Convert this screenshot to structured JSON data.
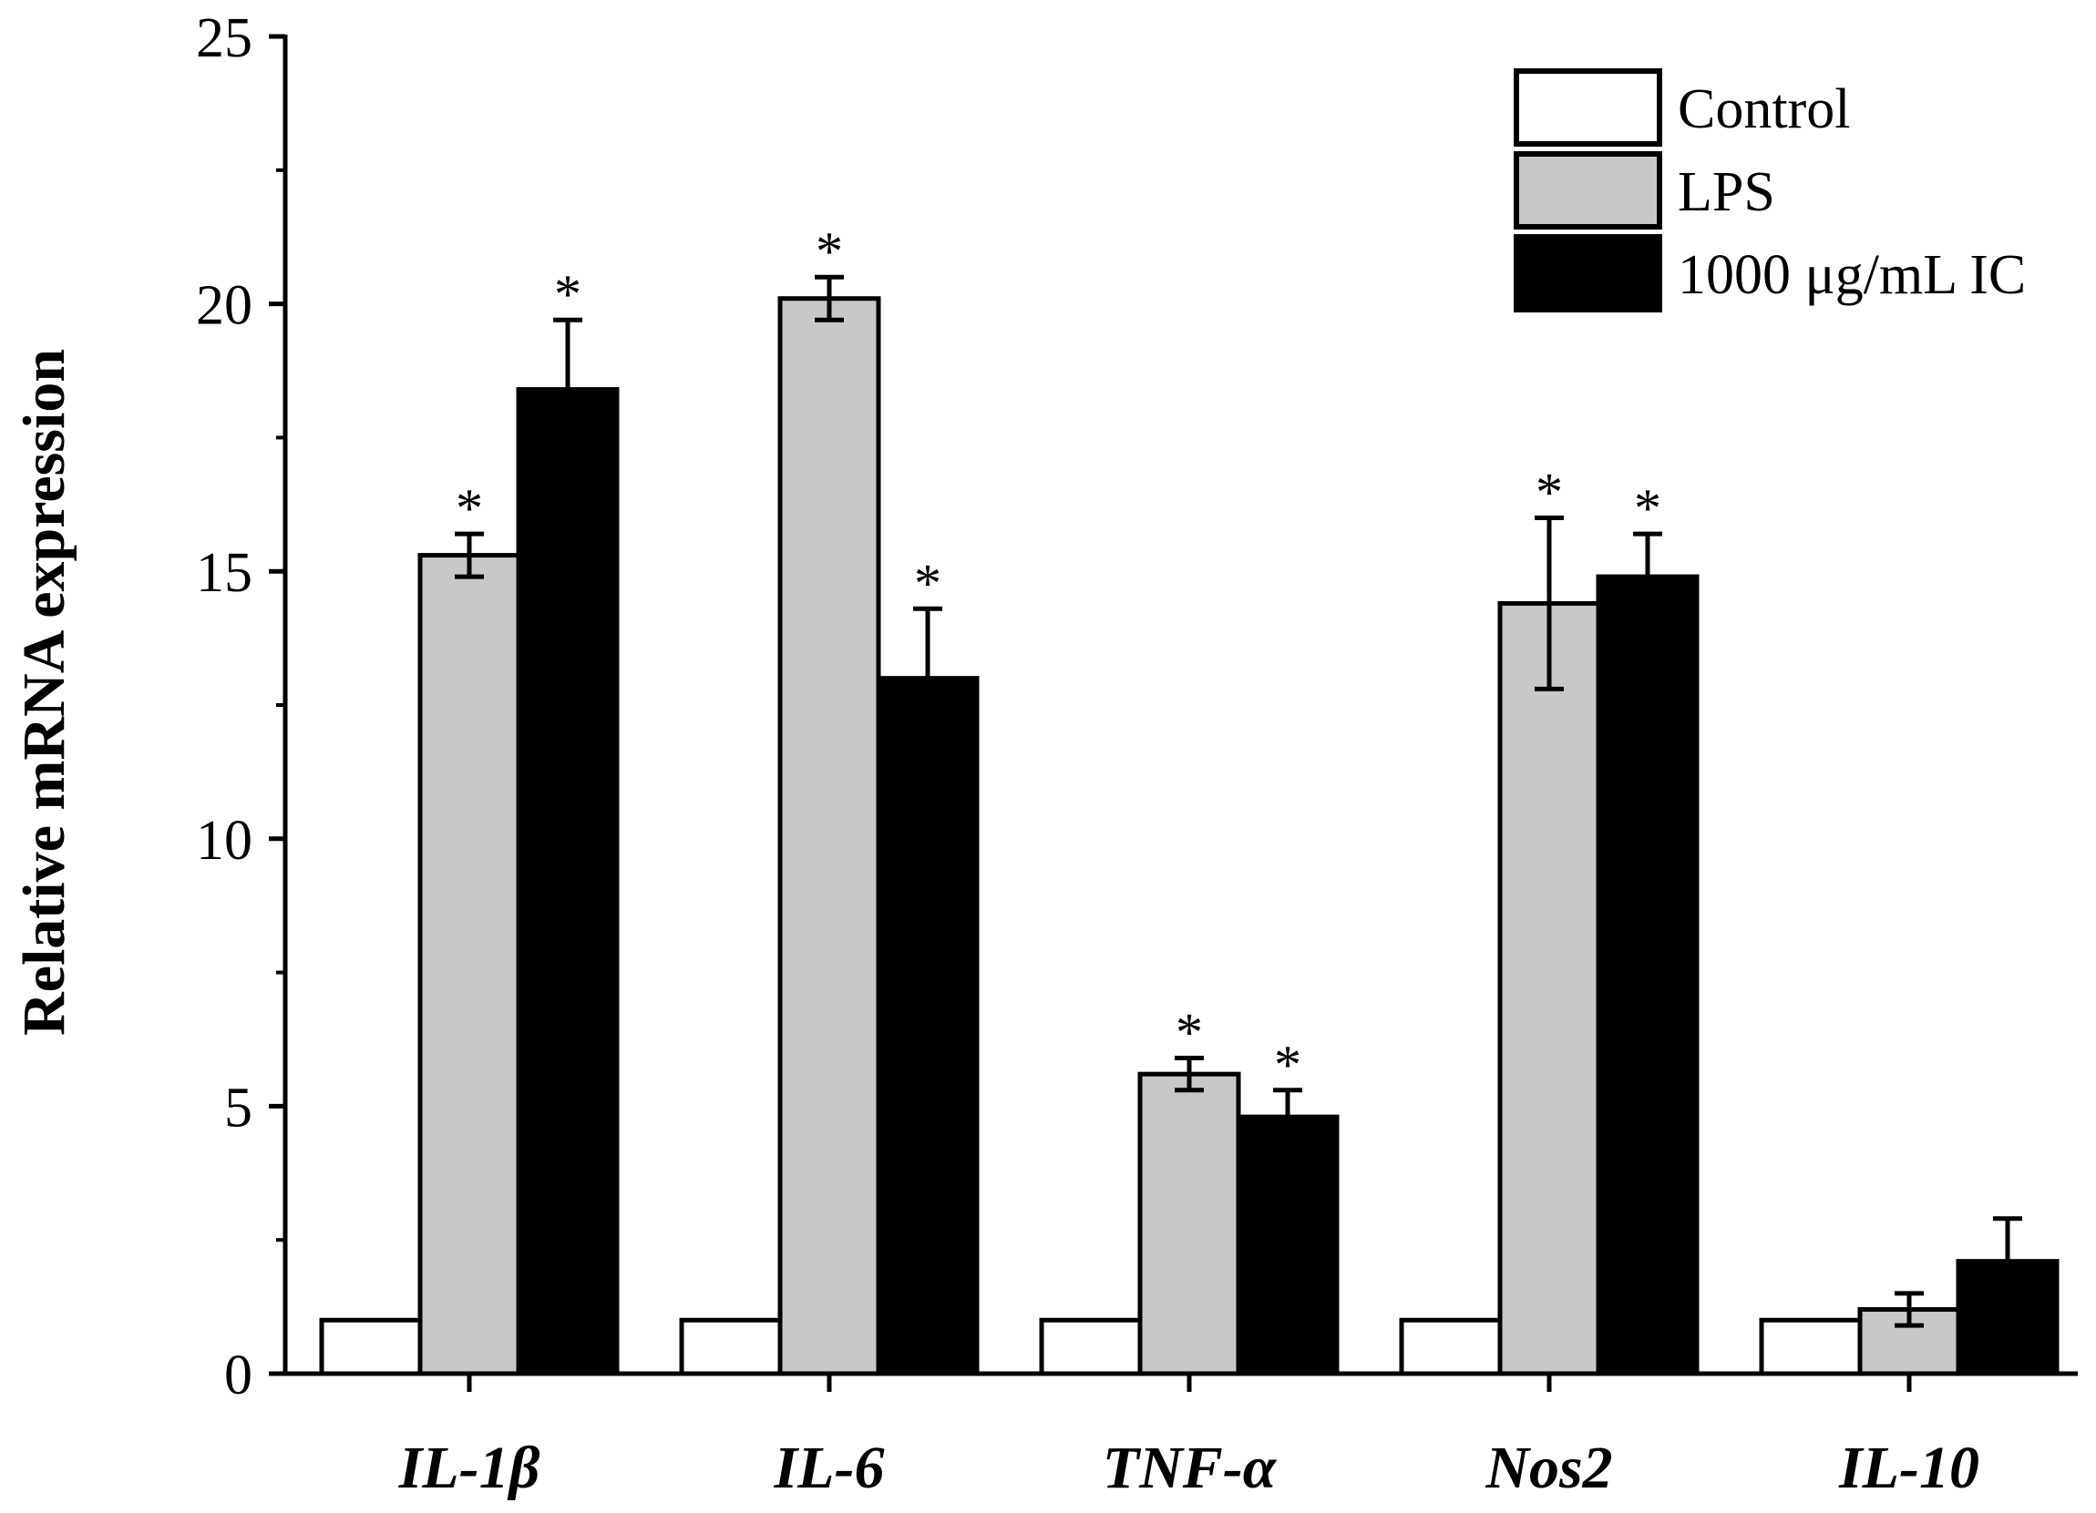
{
  "chart_data": {
    "type": "bar",
    "title": "",
    "xlabel": "",
    "ylabel": "Relative mRNA expression",
    "ylim": [
      0,
      25
    ],
    "yticks": [
      0,
      5,
      10,
      15,
      20,
      25
    ],
    "yminor": [
      2.5,
      7.5,
      12.5,
      17.5,
      22.5
    ],
    "grid": false,
    "legend_position": "top-right",
    "categories": [
      "IL-1β",
      "IL-6",
      "TNF-α",
      "Nos2",
      "IL-10"
    ],
    "series": [
      {
        "name": "Control",
        "color": "#ffffff",
        "values": [
          1.0,
          1.0,
          1.0,
          1.0,
          1.0
        ],
        "errors": [
          0,
          0,
          0,
          0,
          0
        ],
        "significance": [
          "",
          "",
          "",
          "",
          ""
        ]
      },
      {
        "name": "LPS",
        "color": "#c8c8c8",
        "values": [
          15.3,
          20.1,
          5.6,
          14.4,
          1.2
        ],
        "errors": [
          0.4,
          0.4,
          0.3,
          1.6,
          0.3
        ],
        "significance": [
          "*",
          "*",
          "*",
          "*",
          ""
        ]
      },
      {
        "name": "1000 μg/mL IC",
        "color": "#000000",
        "values": [
          18.4,
          13.0,
          4.8,
          14.9,
          2.1
        ],
        "errors": [
          1.3,
          1.3,
          0.5,
          0.8,
          0.8
        ],
        "significance": [
          "*",
          "*",
          "*",
          "*",
          ""
        ]
      }
    ]
  }
}
